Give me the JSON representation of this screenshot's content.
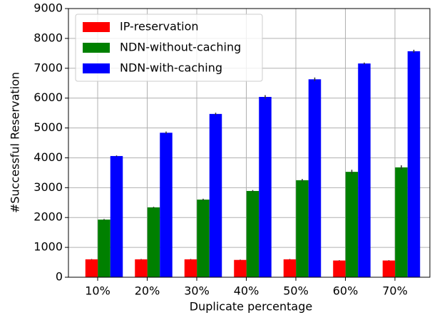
{
  "chart_data": {
    "type": "bar",
    "xlabel": "Duplicate percentage",
    "ylabel": "#Successful Reservation",
    "categories": [
      "10%",
      "20%",
      "30%",
      "40%",
      "50%",
      "60%",
      "70%"
    ],
    "series": [
      {
        "name": "IP-reservation",
        "color": "#ff0000",
        "values": [
          600,
          600,
          600,
          580,
          600,
          560,
          560
        ],
        "errors": [
          10,
          10,
          10,
          10,
          10,
          10,
          10
        ]
      },
      {
        "name": "NDN-without-caching",
        "color": "#008000",
        "values": [
          1930,
          2340,
          2600,
          2890,
          3250,
          3530,
          3680
        ],
        "errors": [
          20,
          20,
          30,
          30,
          40,
          70,
          70
        ]
      },
      {
        "name": "NDN-with-caching",
        "color": "#0000ff",
        "values": [
          4060,
          4840,
          5470,
          6040,
          6630,
          7160,
          7570
        ],
        "errors": [
          20,
          40,
          40,
          60,
          60,
          30,
          50
        ]
      }
    ],
    "ylim": [
      0,
      9000
    ],
    "yticks": [
      0,
      1000,
      2000,
      3000,
      4000,
      5000,
      6000,
      7000,
      8000,
      9000
    ],
    "grid": true,
    "legend": "upper left"
  }
}
